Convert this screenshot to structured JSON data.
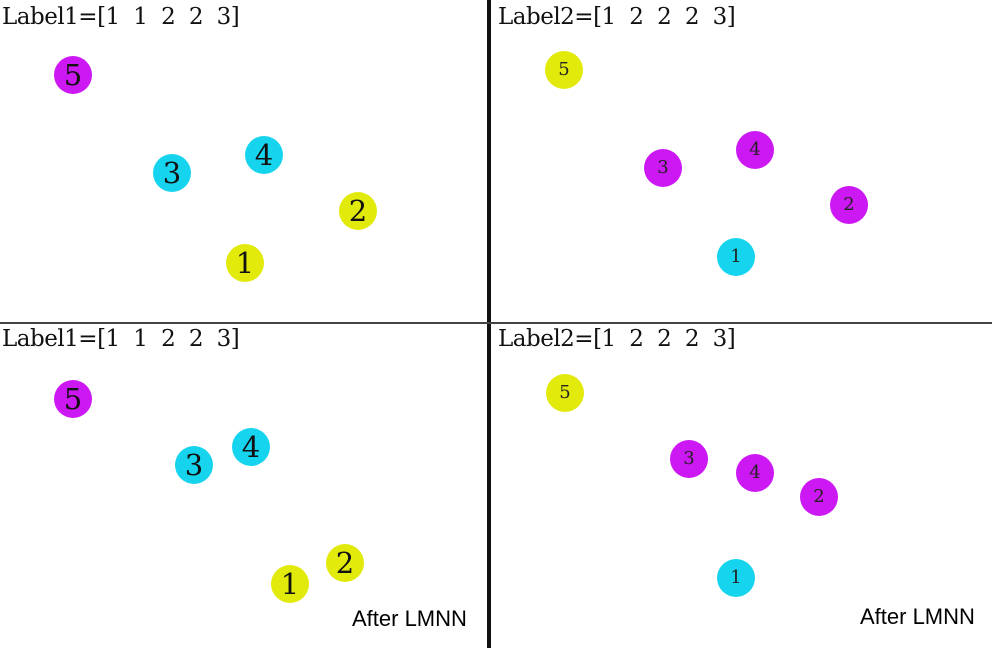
{
  "colors": {
    "label_1": "#e2ea0b",
    "label_2": "#16d4ee",
    "label_3": "#cc18f2",
    "label_text": "#222222"
  },
  "panels": [
    {
      "id": "top-left",
      "label": "Label1=[1  1  2  2  3]",
      "caption": "",
      "points": [
        {
          "id": "5",
          "cls": 3
        },
        {
          "id": "3",
          "cls": 2
        },
        {
          "id": "4",
          "cls": 2
        },
        {
          "id": "2",
          "cls": 1
        },
        {
          "id": "1",
          "cls": 1
        }
      ]
    },
    {
      "id": "top-right",
      "label": "Label2=[1  2  2  2  3]",
      "caption": "",
      "points": [
        {
          "id": "5",
          "cls": 1
        },
        {
          "id": "3",
          "cls": 3
        },
        {
          "id": "4",
          "cls": 3
        },
        {
          "id": "2",
          "cls": 3
        },
        {
          "id": "1",
          "cls": 2
        }
      ]
    },
    {
      "id": "bottom-left",
      "label": "Label1=[1  1  2  2  3]",
      "caption": "After LMNN",
      "points": [
        {
          "id": "5",
          "cls": 3
        },
        {
          "id": "3",
          "cls": 2
        },
        {
          "id": "4",
          "cls": 2
        },
        {
          "id": "2",
          "cls": 1
        },
        {
          "id": "1",
          "cls": 1
        }
      ]
    },
    {
      "id": "bottom-right",
      "label": "Label2=[1  2  2  2  3]",
      "caption": "After LMNN",
      "points": [
        {
          "id": "5",
          "cls": 1
        },
        {
          "id": "3",
          "cls": 3
        },
        {
          "id": "4",
          "cls": 3
        },
        {
          "id": "2",
          "cls": 3
        },
        {
          "id": "1",
          "cls": 2
        }
      ]
    }
  ]
}
